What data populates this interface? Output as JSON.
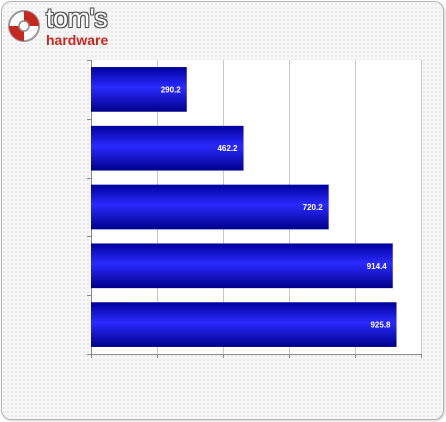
{
  "logo": {
    "word1": "tom's",
    "word2": "hardware"
  },
  "colors": {
    "bar_light": "#2a2aff",
    "bar_dark": "#00009c",
    "logo_red": "#c62820"
  },
  "chart_data": {
    "type": "bar",
    "orientation": "horizontal",
    "title": "",
    "xlabel": "",
    "ylabel": "",
    "categories": [
      "",
      "",
      "",
      "",
      ""
    ],
    "values": [
      290.2,
      462.2,
      720.2,
      914.4,
      925.8
    ],
    "xlim": [
      0,
      1000
    ],
    "grid": true,
    "legend": "none"
  }
}
